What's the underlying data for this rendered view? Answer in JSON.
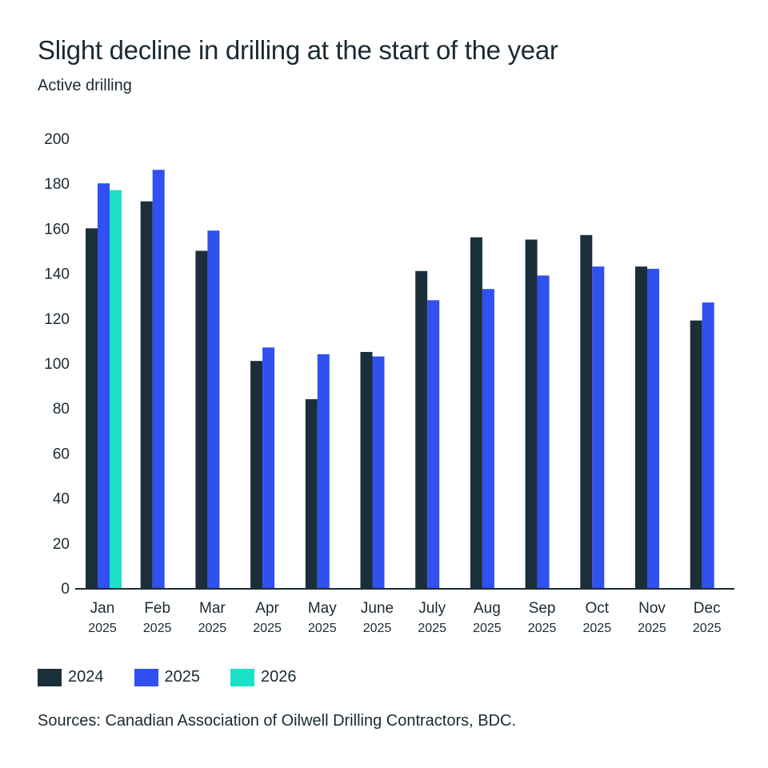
{
  "chart_data": {
    "type": "bar",
    "title": "Slight decline in drilling at the start of the year",
    "subtitle": "Active drilling",
    "xlabel": "",
    "ylabel": "",
    "ylim": [
      0,
      200
    ],
    "yticks": [
      0,
      20,
      40,
      60,
      80,
      100,
      120,
      140,
      160,
      180,
      200
    ],
    "grid": false,
    "categories": [
      {
        "month": "Jan",
        "year": "2025"
      },
      {
        "month": "Feb",
        "year": "2025"
      },
      {
        "month": "Mar",
        "year": "2025"
      },
      {
        "month": "Apr",
        "year": "2025"
      },
      {
        "month": "May",
        "year": "2025"
      },
      {
        "month": "June",
        "year": "2025"
      },
      {
        "month": "July",
        "year": "2025"
      },
      {
        "month": "Aug",
        "year": "2025"
      },
      {
        "month": "Sep",
        "year": "2025"
      },
      {
        "month": "Oct",
        "year": "2025"
      },
      {
        "month": "Nov",
        "year": "2025"
      },
      {
        "month": "Dec",
        "year": "2025"
      }
    ],
    "series": [
      {
        "name": "2024",
        "color": "#1b2f3b",
        "values": [
          160,
          172,
          150,
          101,
          84,
          105,
          141,
          156,
          155,
          157,
          143,
          119
        ]
      },
      {
        "name": "2025",
        "color": "#3150f0",
        "values": [
          180,
          186,
          159,
          107,
          104,
          103,
          128,
          133,
          139,
          143,
          142,
          127
        ]
      },
      {
        "name": "2026",
        "color": "#1de0c8",
        "values": [
          177,
          null,
          null,
          null,
          null,
          null,
          null,
          null,
          null,
          null,
          null,
          null
        ]
      }
    ],
    "legend_position": "bottom-left",
    "source": "Sources: Canadian Association of Oilwell Drilling Contractors, BDC."
  }
}
